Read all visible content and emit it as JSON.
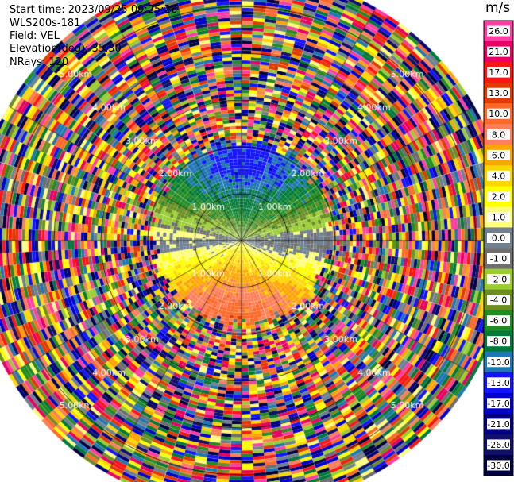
{
  "info": {
    "start_time": "Start time: 2023/09/25 09:25:26",
    "instrument": "WLS200s-181",
    "field": "Field: VEL",
    "elevation": "Elevation(deg): 35.30",
    "nrays": "NRays: 120"
  },
  "chart_data": {
    "type": "heatmap",
    "projection": "polar-ppi",
    "range_unit": "km",
    "ring_labels_km": [
      "1.00km",
      "2.00km",
      "3.00km",
      "4.00km",
      "5.00km"
    ],
    "max_range_km": 5.7,
    "n_rays": 120,
    "colorbar": {
      "unit": "m/s",
      "tick_labels": [
        "26.0",
        "21.0",
        "17.0",
        "13.0",
        "10.0",
        "8.0",
        "6.0",
        "4.0",
        "2.0",
        "1.0",
        "0.0",
        "-1.0",
        "-2.0",
        "-4.0",
        "-6.0",
        "-8.0",
        "-10.0",
        "-13.0",
        "-17.0",
        "-21.0",
        "-26.0",
        "-30.0"
      ],
      "colors": [
        "#ff3ea3",
        "#e80063",
        "#ff1515",
        "#e23a00",
        "#ff6a2a",
        "#ff7f5a",
        "#ffa500",
        "#ffd700",
        "#ffff00",
        "#fffd7a",
        "#708090",
        "#6e6e6e",
        "#9acd32",
        "#6b8e23",
        "#228b22",
        "#007a3a",
        "#1f77b4",
        "#1414ff",
        "#0000cd",
        "#000080",
        "#10106a",
        "#000040"
      ]
    }
  }
}
